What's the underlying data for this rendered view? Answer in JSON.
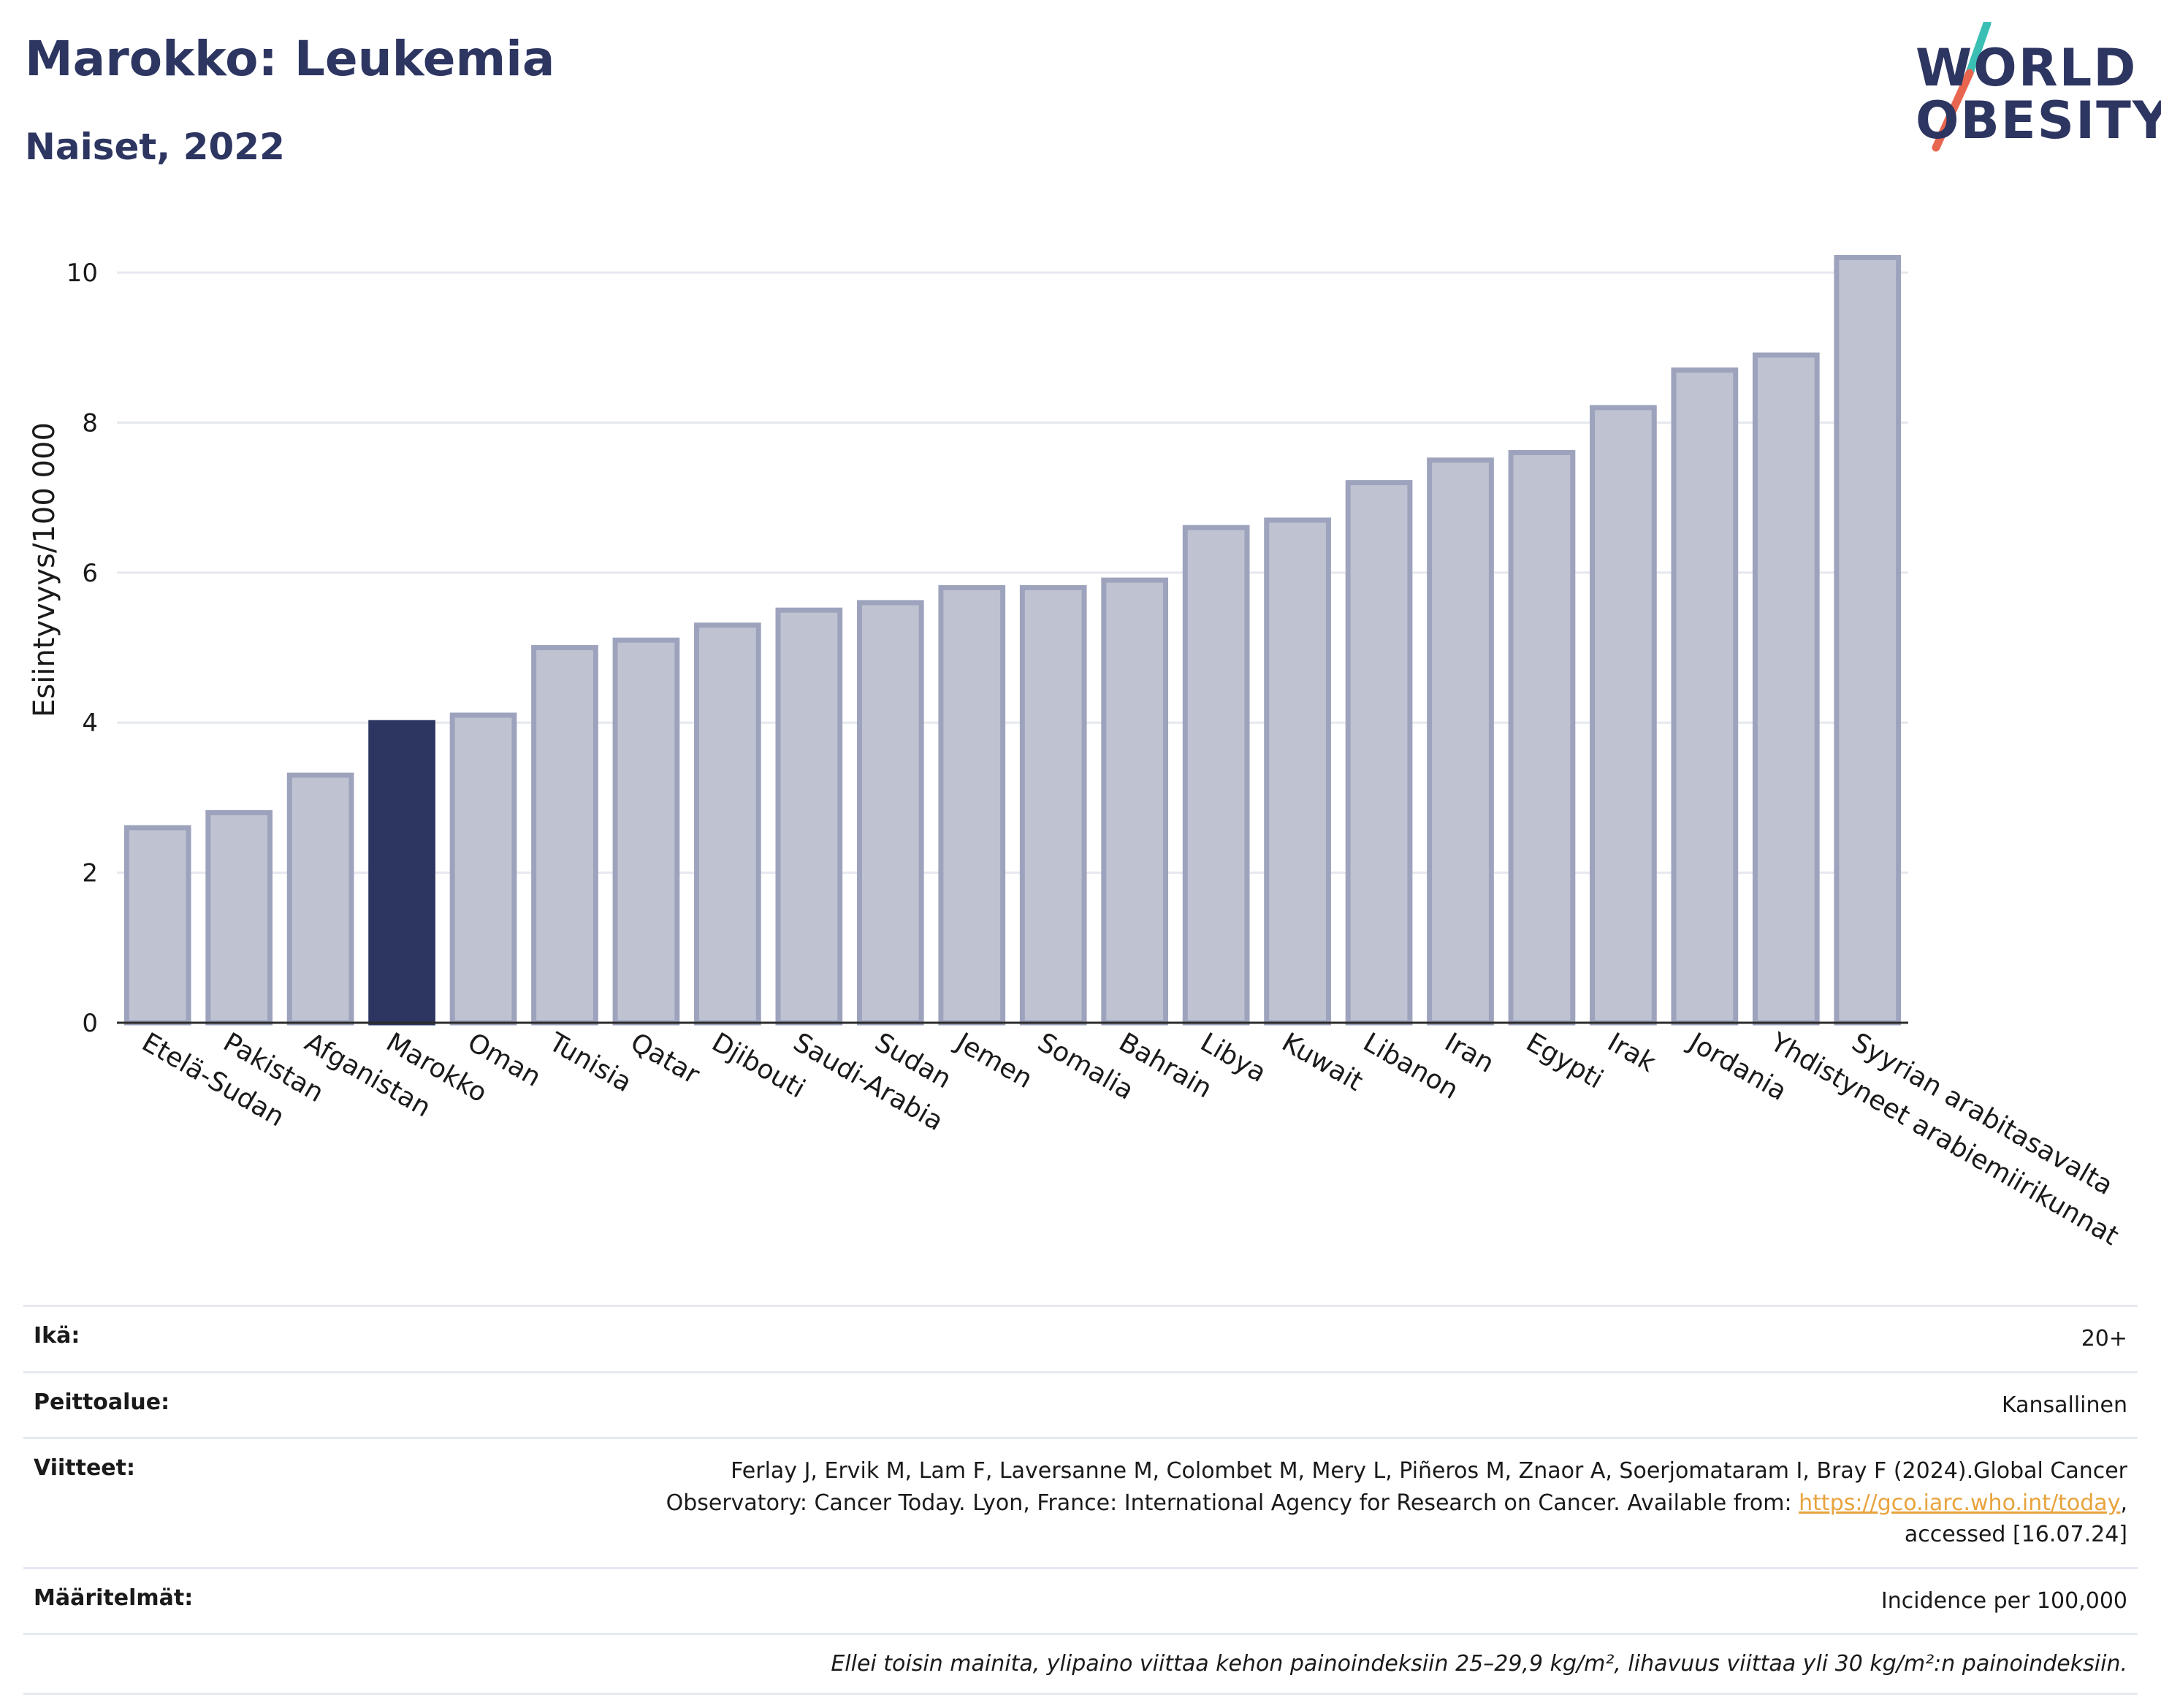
{
  "header": {
    "title": "Marokko: Leukemia",
    "subtitle": "Naiset, 2022"
  },
  "logo": {
    "line1": "WORLD",
    "line2": "OBESITY",
    "colors": {
      "text": "#2d3561",
      "slash_top": "#3bbfb5",
      "slash_bottom": "#e8664f"
    }
  },
  "colors": {
    "bar_default": "#bfc3d1",
    "bar_border": "#9ea3bd",
    "bar_highlight": "#2d3561",
    "grid": "#e6e8ef",
    "axis": "#2b2b2b"
  },
  "chart_data": {
    "type": "bar",
    "ylabel": "Esiintyvyys/100 000",
    "ylim": [
      0,
      10.4
    ],
    "yticks": [
      0,
      2,
      4,
      6,
      8,
      10
    ],
    "grid": true,
    "highlight": "Marokko",
    "categories": [
      "Etelä-Sudan",
      "Pakistan",
      "Afganistan",
      "Marokko",
      "Oman",
      "Tunisia",
      "Qatar",
      "Djibouti",
      "Saudi-Arabia",
      "Sudan",
      "Jemen",
      "Somalia",
      "Bahrain",
      "Libya",
      "Kuwait",
      "Libanon",
      "Iran",
      "Egypti",
      "Irak",
      "Jordania",
      "Yhdistyneet arabiemiirikunnat",
      "Syyrian arabitasavalta"
    ],
    "values": [
      2.6,
      2.8,
      3.3,
      4.0,
      4.1,
      5.0,
      5.1,
      5.3,
      5.5,
      5.6,
      5.8,
      5.8,
      5.9,
      6.6,
      6.7,
      7.2,
      7.5,
      7.6,
      8.2,
      8.7,
      8.9,
      10.2
    ]
  },
  "meta": {
    "age_label": "Ikä:",
    "age_value": "20+",
    "coverage_label": "Peittoalue:",
    "coverage_value": "Kansallinen",
    "references_label": "Viitteet:",
    "references_line1": "Ferlay J, Ervik M, Lam F, Laversanne M, Colombet M, Mery L, Piñeros M, Znaor A, Soerjomataram I, Bray F (2024).Global Cancer",
    "references_line2": "Observatory: Cancer Today. Lyon, France: International Agency for Research on Cancer. Available from: ",
    "references_link": "https://gco.iarc.who.int/today",
    "references_line3": "accessed [16.07.24]",
    "definitions_label": "Määritelmät:",
    "definitions_value": "Incidence per 100,000",
    "note": "Ellei toisin mainita, ylipaino viittaa kehon painoindeksiin 25–29,9 kg/m², lihavuus viittaa yli 30 kg/m²:n painoindeksiin."
  }
}
